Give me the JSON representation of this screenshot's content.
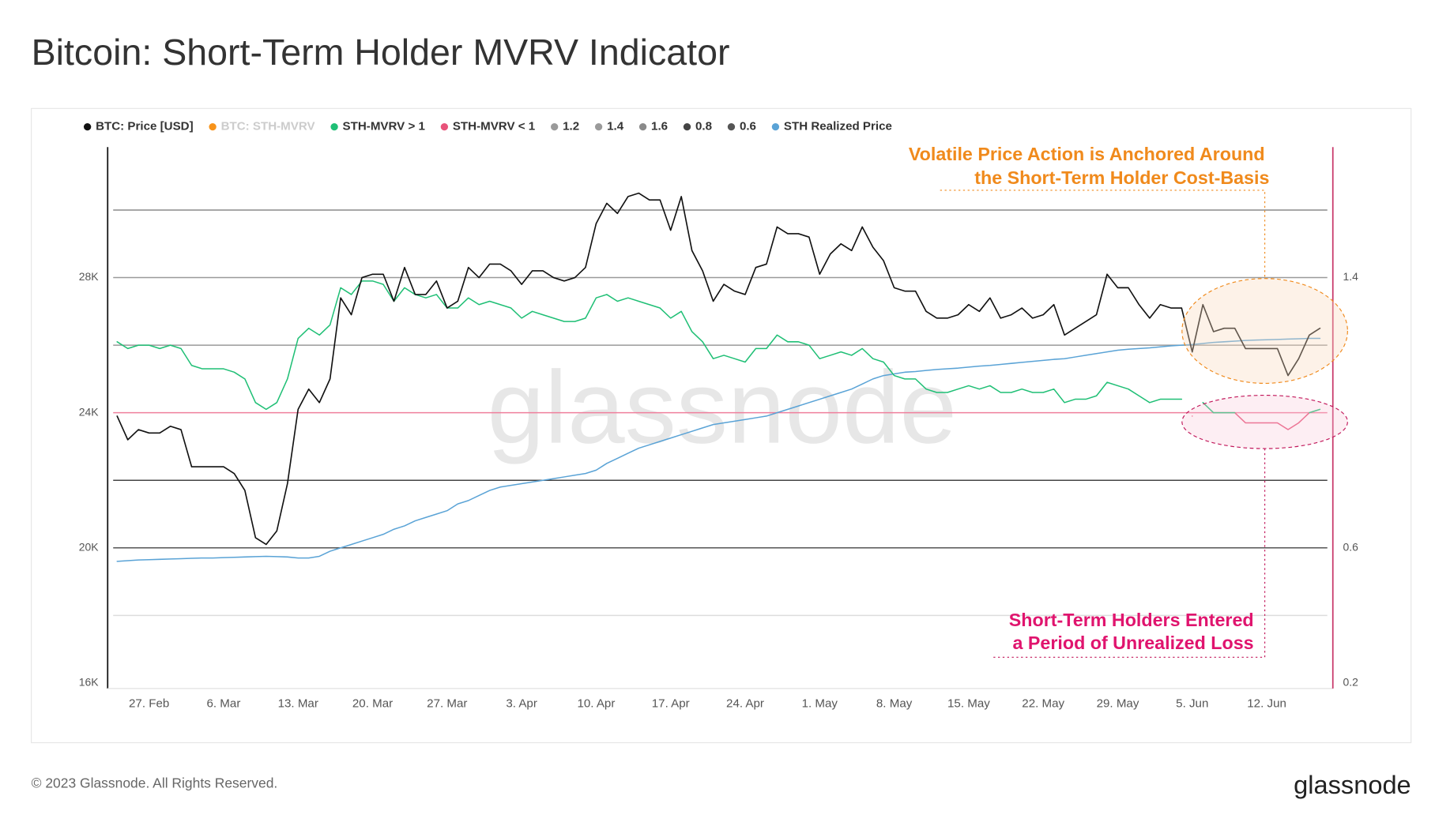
{
  "chart_data": {
    "type": "line",
    "title": "Bitcoin: Short-Term Holder MVRV Indicator",
    "categories": [
      null,
      null,
      null,
      "27. Feb",
      null,
      null,
      null,
      null,
      null,
      null,
      "6. Mar",
      null,
      null,
      null,
      null,
      null,
      null,
      "13. Mar",
      null,
      null,
      null,
      null,
      null,
      null,
      "20. Mar",
      null,
      null,
      null,
      null,
      null,
      null,
      "27. Mar",
      null,
      null,
      null,
      null,
      null,
      null,
      "3. Apr",
      null,
      null,
      null,
      null,
      null,
      null,
      "10. Apr",
      null,
      null,
      null,
      null,
      null,
      null,
      "17. Apr",
      null,
      null,
      null,
      null,
      null,
      null,
      "24. Apr",
      null,
      null,
      null,
      null,
      null,
      null,
      "1. May",
      null,
      null,
      null,
      null,
      null,
      null,
      "8. May",
      null,
      null,
      null,
      null,
      null,
      null,
      "15. May",
      null,
      null,
      null,
      null,
      null,
      null,
      "22. May",
      null,
      null,
      null,
      null,
      null,
      null,
      "29. May",
      null,
      null,
      null,
      null,
      null,
      null,
      "5. Jun",
      null,
      null,
      null,
      null,
      null,
      null,
      "12. Jun",
      null,
      null,
      null,
      null,
      null
    ],
    "series": [
      {
        "name": "BTC: Price [USD]",
        "color": "#111111",
        "values": [
          23900,
          23200,
          23500,
          23400,
          23400,
          23600,
          23500,
          22400,
          22400,
          22400,
          22400,
          22200,
          21700,
          20300,
          20100,
          20500,
          21900,
          24100,
          24700,
          24300,
          25000,
          27400,
          26900,
          28000,
          28100,
          28100,
          27300,
          28300,
          27500,
          27500,
          27900,
          27100,
          27300,
          28300,
          28000,
          28400,
          28400,
          28200,
          27800,
          28200,
          28200,
          28000,
          27900,
          28000,
          28300,
          29600,
          30200,
          29900,
          30400,
          30500,
          30300,
          30300,
          29400,
          30400,
          28800,
          28200,
          27300,
          27800,
          27600,
          27500,
          28300,
          28400,
          29500,
          29300,
          29300,
          29200,
          28100,
          28700,
          29000,
          28800,
          29500,
          28900,
          28500,
          27700,
          27600,
          27600,
          27000,
          26800,
          26800,
          26900,
          27200,
          27000,
          27400,
          26800,
          26900,
          27100,
          26800,
          26900,
          27200,
          26300,
          26500,
          26700,
          26900,
          28100,
          27700,
          27700,
          27200,
          26800,
          27200,
          27100,
          27100,
          25800,
          27200,
          26400,
          26500,
          26500,
          25900,
          25900,
          25900,
          25900,
          25100,
          25600,
          26300,
          26500
        ]
      },
      {
        "name": "BTC: STH-MVRV",
        "color": "#f7931a",
        "hidden": true,
        "axis": "y2"
      },
      {
        "name": "STH-MVRV > 1",
        "color": "#1fbf75",
        "axis": "y2",
        "values": [
          1.21,
          1.19,
          1.2,
          1.2,
          1.19,
          1.2,
          1.19,
          1.14,
          1.13,
          1.13,
          1.13,
          1.12,
          1.1,
          1.03,
          1.01,
          1.03,
          1.1,
          1.22,
          1.25,
          1.23,
          1.26,
          1.37,
          1.35,
          1.39,
          1.39,
          1.38,
          1.33,
          1.37,
          1.35,
          1.34,
          1.35,
          1.31,
          1.31,
          1.34,
          1.32,
          1.33,
          1.32,
          1.31,
          1.28,
          1.3,
          1.29,
          1.28,
          1.27,
          1.27,
          1.28,
          1.34,
          1.35,
          1.33,
          1.34,
          1.33,
          1.32,
          1.31,
          1.28,
          1.3,
          1.24,
          1.21,
          1.16,
          1.17,
          1.16,
          1.15,
          1.19,
          1.19,
          1.23,
          1.21,
          1.21,
          1.2,
          1.16,
          1.17,
          1.18,
          1.17,
          1.19,
          1.16,
          1.15,
          1.11,
          1.1,
          1.1,
          1.07,
          1.06,
          1.06,
          1.07,
          1.08,
          1.07,
          1.08,
          1.06,
          1.06,
          1.07,
          1.06,
          1.06,
          1.07,
          1.03,
          1.04,
          1.04,
          1.05,
          1.09,
          1.08,
          1.07,
          1.05,
          1.03,
          1.04,
          1.04,
          1.04,
          null,
          1.03,
          1.0,
          1.0,
          1.0,
          null,
          null,
          null,
          null,
          null,
          null,
          1.0,
          1.01
        ]
      },
      {
        "name": "STH-MVRV < 1",
        "color": "#e8537a",
        "axis": "y2",
        "values": [
          null,
          null,
          null,
          null,
          null,
          null,
          null,
          null,
          null,
          null,
          null,
          null,
          null,
          null,
          null,
          null,
          null,
          null,
          null,
          null,
          null,
          null,
          null,
          null,
          null,
          null,
          null,
          null,
          null,
          null,
          null,
          null,
          null,
          null,
          null,
          null,
          null,
          null,
          null,
          null,
          null,
          null,
          null,
          null,
          null,
          null,
          null,
          null,
          null,
          null,
          null,
          null,
          null,
          null,
          null,
          null,
          null,
          null,
          null,
          null,
          null,
          null,
          null,
          null,
          null,
          null,
          null,
          null,
          null,
          null,
          null,
          null,
          null,
          null,
          null,
          null,
          null,
          null,
          null,
          null,
          null,
          null,
          null,
          null,
          null,
          null,
          null,
          null,
          null,
          null,
          null,
          null,
          null,
          null,
          null,
          null,
          null,
          null,
          null,
          null,
          null,
          0.99,
          null,
          1.0,
          1.0,
          1.0,
          0.97,
          0.97,
          0.97,
          0.97,
          0.95,
          0.97,
          1.0,
          null
        ]
      },
      {
        "name": "1.2",
        "color": "#9a9a9a",
        "axis": "y2",
        "value": 1.2
      },
      {
        "name": "1.4",
        "color": "#9a9a9a",
        "axis": "y2",
        "value": 1.4
      },
      {
        "name": "1.6",
        "color": "#8a8a8a",
        "axis": "y2",
        "value": 1.6
      },
      {
        "name": "0.8",
        "color": "#444444",
        "axis": "y2",
        "value": 0.8
      },
      {
        "name": "0.6",
        "color": "#555555",
        "axis": "y2",
        "value": 0.6
      },
      {
        "name": "STH Realized Price",
        "color": "#5aa3d6",
        "values": [
          19600,
          19620,
          19640,
          19650,
          19660,
          19670,
          19680,
          19690,
          19700,
          19700,
          19710,
          19720,
          19730,
          19740,
          19750,
          19740,
          19730,
          19700,
          19700,
          19750,
          19900,
          20000,
          20100,
          20200,
          20300,
          20400,
          20550,
          20650,
          20800,
          20900,
          21000,
          21100,
          21300,
          21400,
          21550,
          21700,
          21800,
          21850,
          21900,
          21950,
          22000,
          22050,
          22100,
          22150,
          22200,
          22300,
          22500,
          22650,
          22800,
          22950,
          23050,
          23150,
          23250,
          23350,
          23450,
          23550,
          23650,
          23700,
          23750,
          23800,
          23850,
          23900,
          24000,
          24100,
          24200,
          24300,
          24400,
          24500,
          24600,
          24700,
          24850,
          25000,
          25100,
          25150,
          25200,
          25220,
          25250,
          25280,
          25300,
          25320,
          25350,
          25380,
          25400,
          25430,
          25460,
          25490,
          25520,
          25550,
          25580,
          25600,
          25650,
          25700,
          25750,
          25800,
          25850,
          25880,
          25900,
          25920,
          25950,
          25980,
          26000,
          26020,
          26050,
          26080,
          26100,
          26120,
          26140,
          26150,
          26160,
          26170,
          26180,
          26190,
          26200,
          26200
        ]
      }
    ],
    "reference_lines": [
      {
        "value": 1.0,
        "color": "#ef7f9c",
        "axis": "y2"
      },
      {
        "value": 0.4,
        "color": "#dddddd",
        "axis": "y2"
      }
    ],
    "ylim": [
      16000,
      32000
    ],
    "yticks": [
      {
        "value": 16000,
        "label": "16K"
      },
      {
        "value": 20000,
        "label": "20K"
      },
      {
        "value": 24000,
        "label": "24K"
      },
      {
        "value": 28000,
        "label": "28K"
      }
    ],
    "y2lim": [
      0.2,
      1.8
    ],
    "y2ticks": [
      0.2,
      0.6,
      1.4
    ],
    "annotations": [
      {
        "lines": [
          "Volatile Price Action is Anchored Around",
          "the Short-Term Holder Cost-Basis"
        ],
        "color": "#f08a1c"
      },
      {
        "lines": [
          "Short-Term Holders Entered",
          "a Period of Unrealized Loss"
        ],
        "color": "#e0146e"
      }
    ],
    "watermark": "glassnode",
    "footer": "© 2023 Glassnode. All Rights Reserved.",
    "logo": "glassnode"
  }
}
